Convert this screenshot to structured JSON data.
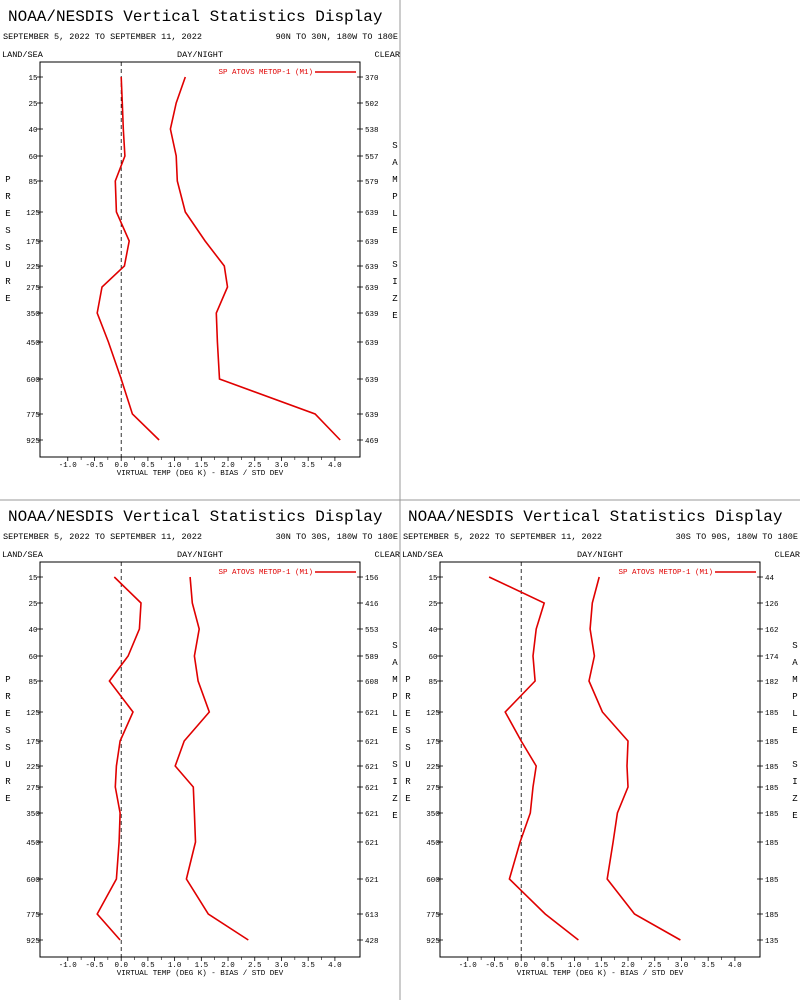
{
  "chart_data": [
    {
      "type": "line",
      "title": "NOAA/NESDIS Vertical Statistics Display",
      "subtitle": "SEPTEMBER 5, 2022 TO SEPTEMBER 11, 2022",
      "region": "90N TO 30N, 180W TO 180E",
      "land_sea": "LAND/SEA",
      "day_night": "DAY/NIGHT",
      "clear": "CLEAR",
      "y_label": "PRESSURE",
      "y2_label": "SAMPLE SIZE",
      "x_label": "VIRTUAL TEMP (DEG K) - BIAS / STD DEV",
      "categories": [
        15,
        25,
        40,
        60,
        85,
        125,
        175,
        225,
        275,
        350,
        450,
        600,
        775,
        925
      ],
      "sample_size": [
        370,
        502,
        538,
        557,
        579,
        639,
        639,
        639,
        639,
        639,
        639,
        639,
        639,
        469
      ],
      "series": [
        {
          "name": "SP ATOVS METOP-1 (M1)",
          "color": "#e00000",
          "bias": [
            0.0,
            0.02,
            0.04,
            0.07,
            -0.11,
            -0.09,
            0.15,
            0.06,
            -0.36,
            -0.45,
            -0.24,
            0.0,
            0.21,
            0.71
          ],
          "std_dev": [
            1.2,
            1.03,
            0.92,
            1.03,
            1.05,
            1.2,
            1.57,
            1.93,
            1.99,
            1.78,
            1.8,
            1.84,
            3.63,
            4.1
          ]
        }
      ],
      "xlim": [
        -1.52,
        4.47
      ],
      "xticks": [
        {
          "value": -1,
          "label": "-1.0"
        },
        -0.5,
        {
          "value": 0,
          "label": "0.0"
        },
        0.5,
        {
          "value": 1,
          "label": "1.0"
        },
        1.5,
        {
          "value": 2,
          "label": "2.0"
        },
        2.5,
        {
          "value": 3,
          "label": "3.0"
        },
        3.5,
        {
          "value": 4,
          "label": "4.0"
        }
      ],
      "grid": false
    },
    {
      "type": "line",
      "title": "NOAA/NESDIS Vertical Statistics Display",
      "subtitle": "SEPTEMBER 5, 2022 TO SEPTEMBER 11, 2022",
      "region": "30N TO 30S, 180W TO 180E",
      "land_sea": "LAND/SEA",
      "day_night": "DAY/NIGHT",
      "clear": "CLEAR",
      "y_label": "PRESSURE",
      "y2_label": "SAMPLE SIZE",
      "x_label": "VIRTUAL TEMP (DEG K) - BIAS / STD DEV",
      "categories": [
        15,
        25,
        40,
        60,
        85,
        125,
        175,
        225,
        275,
        350,
        450,
        600,
        775,
        925
      ],
      "sample_size": [
        156,
        416,
        553,
        589,
        608,
        621,
        621,
        621,
        621,
        621,
        621,
        621,
        613,
        428
      ],
      "series": [
        {
          "name": "SP ATOVS METOP-1 (M1)",
          "color": "#e00000",
          "bias": [
            -0.13,
            0.37,
            0.34,
            0.13,
            -0.22,
            0.22,
            -0.02,
            -0.09,
            -0.11,
            -0.02,
            -0.04,
            -0.09,
            -0.45,
            -0.02
          ],
          "std_dev": [
            1.29,
            1.33,
            1.46,
            1.37,
            1.44,
            1.65,
            1.18,
            1.01,
            1.35,
            1.37,
            1.39,
            1.22,
            1.63,
            2.38
          ]
        }
      ],
      "xlim": [
        -1.52,
        4.47
      ],
      "xticks": [
        {
          "value": -1,
          "label": "-1.0"
        },
        -0.5,
        {
          "value": 0,
          "label": "0.0"
        },
        0.5,
        {
          "value": 1,
          "label": "1.0"
        },
        1.5,
        {
          "value": 2,
          "label": "2.0"
        },
        2.5,
        {
          "value": 3,
          "label": "3.0"
        },
        3.5,
        {
          "value": 4,
          "label": "4.0"
        }
      ],
      "grid": false
    },
    {
      "type": "line",
      "title": "NOAA/NESDIS Vertical Statistics Display",
      "subtitle": "SEPTEMBER 5, 2022 TO SEPTEMBER 11, 2022",
      "region": "30S TO 90S, 180W TO 180E",
      "land_sea": "LAND/SEA",
      "day_night": "DAY/NIGHT",
      "clear": "CLEAR",
      "y_label": "PRESSURE",
      "y2_label": "SAMPLE SIZE",
      "x_label": "VIRTUAL TEMP (DEG K) - BIAS / STD DEV",
      "categories": [
        15,
        25,
        40,
        60,
        85,
        125,
        175,
        225,
        275,
        350,
        450,
        600,
        775,
        925
      ],
      "sample_size": [
        44,
        126,
        162,
        174,
        182,
        185,
        185,
        185,
        185,
        185,
        185,
        185,
        185,
        135
      ],
      "series": [
        {
          "name": "SP ATOVS METOP-1 (M1)",
          "color": "#e00000",
          "bias": [
            -0.6,
            0.43,
            0.28,
            0.22,
            0.26,
            -0.3,
            0.0,
            0.28,
            0.22,
            0.17,
            -0.02,
            -0.22,
            0.45,
            1.07
          ],
          "std_dev": [
            1.46,
            1.33,
            1.29,
            1.37,
            1.27,
            1.52,
            2.0,
            1.98,
            2.0,
            1.8,
            1.72,
            1.61,
            2.12,
            2.98
          ]
        }
      ],
      "xlim": [
        -1.52,
        4.47
      ],
      "xticks": [
        {
          "value": -1,
          "label": "-1.0"
        },
        -0.5,
        {
          "value": 0,
          "label": "0.0"
        },
        0.5,
        {
          "value": 1,
          "label": "1.0"
        },
        1.5,
        {
          "value": 2,
          "label": "2.0"
        },
        2.5,
        {
          "value": 3,
          "label": "3.0"
        },
        3.5,
        {
          "value": 4,
          "label": "4.0"
        }
      ],
      "grid": false
    }
  ]
}
